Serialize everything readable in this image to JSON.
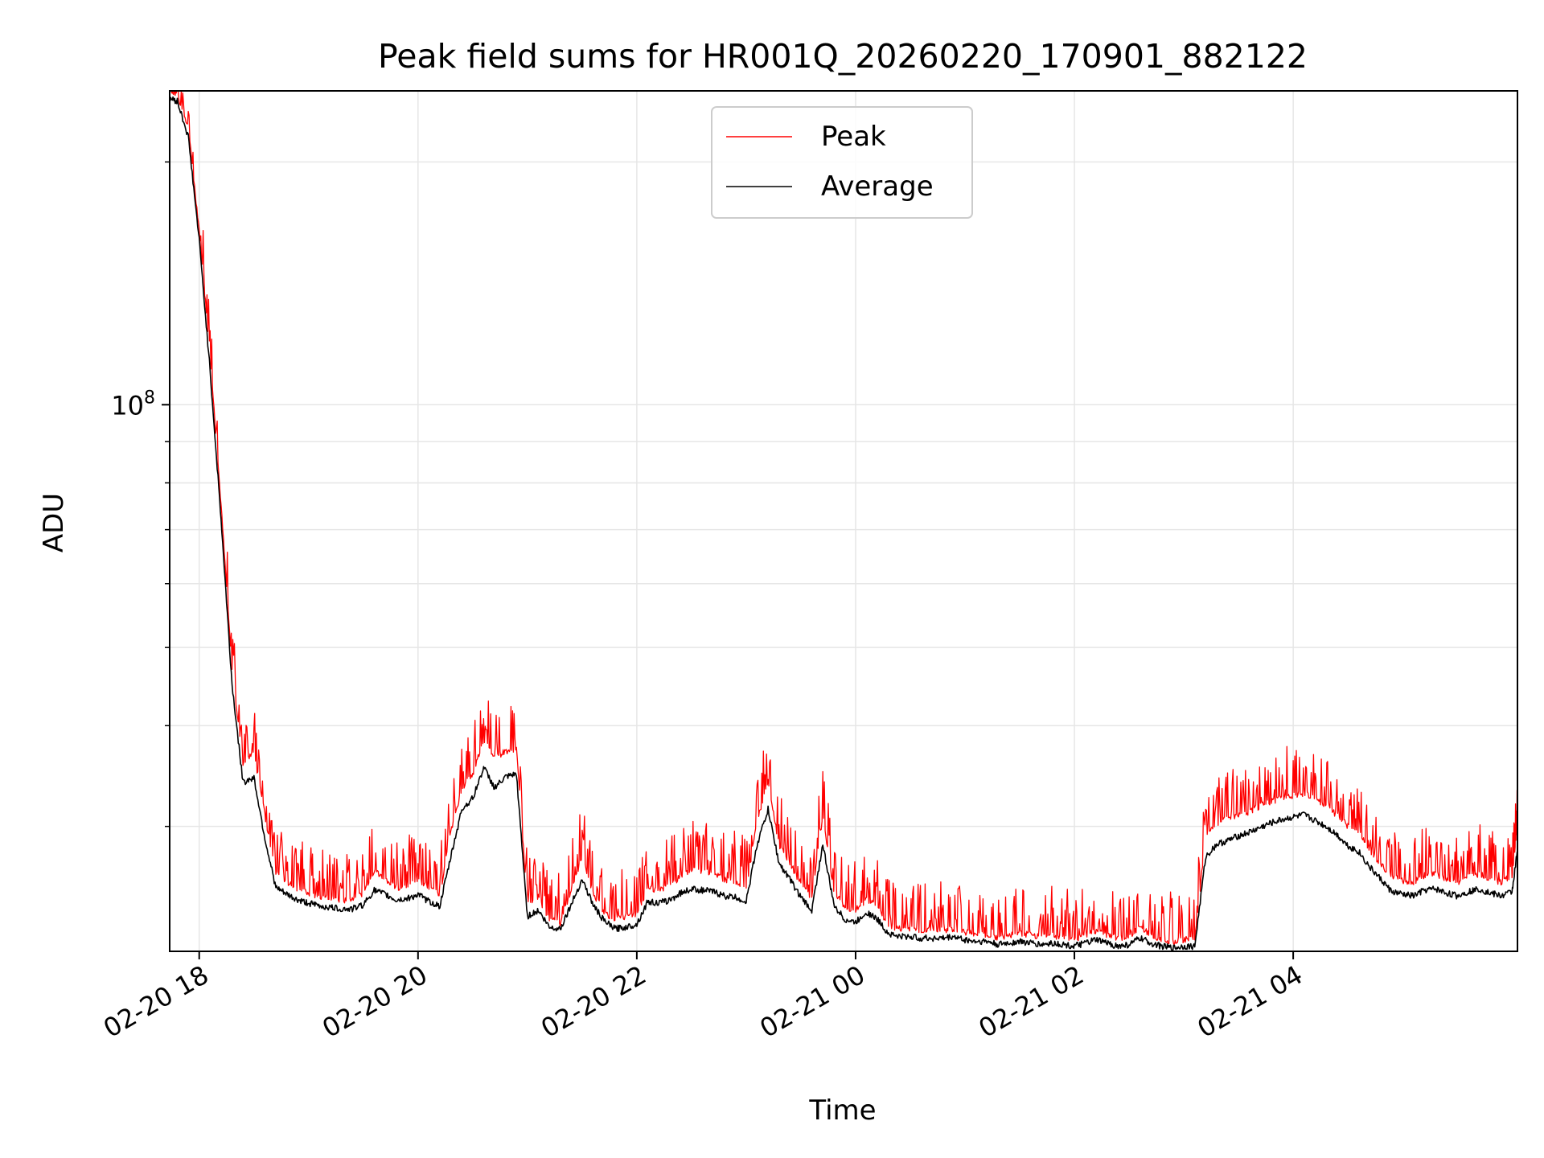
{
  "chart_data": {
    "type": "line",
    "title": "Peak field sums for HR001Q_20260220_170901_882122",
    "xlabel": "Time",
    "ylabel": "ADU",
    "yscale": "log",
    "grid": true,
    "legend_position": "upper-center",
    "xlim_hours": [
      -1.27,
      11.05
    ],
    "ylim": [
      21000000,
      245000000
    ],
    "x_unit": "hours since 2026-02-20 19:00",
    "x_ticks": [
      {
        "value": -1,
        "label": "02-20 18"
      },
      {
        "value": 1,
        "label": "02-20 20"
      },
      {
        "value": 3,
        "label": "02-20 22"
      },
      {
        "value": 5,
        "label": "02-21 00"
      },
      {
        "value": 7,
        "label": "02-21 02"
      },
      {
        "value": 9,
        "label": "02-21 04"
      }
    ],
    "y_major_ticks": [
      {
        "value": 100000000,
        "base": "10",
        "exp": "8"
      }
    ],
    "y_minor_ticks": [
      30000000,
      40000000,
      50000000,
      60000000,
      70000000,
      80000000,
      90000000,
      200000000
    ],
    "series": [
      {
        "name": "Peak",
        "color": "#ff0000",
        "spiky": true,
        "x": [
          -1.27,
          -1.2,
          -1.1,
          -1.0,
          -0.9,
          -0.8,
          -0.7,
          -0.6,
          -0.5,
          -0.4,
          -0.3,
          -0.2,
          -0.1,
          0.0,
          0.1,
          0.2,
          0.3,
          0.4,
          0.5,
          0.6,
          0.7,
          0.8,
          0.9,
          1.0,
          1.1,
          1.2,
          1.3,
          1.4,
          1.5,
          1.6,
          1.7,
          1.8,
          1.9,
          2.0,
          2.1,
          2.2,
          2.3,
          2.4,
          2.5,
          2.6,
          2.7,
          2.8,
          2.9,
          3.0,
          3.1,
          3.2,
          3.3,
          3.4,
          3.5,
          3.6,
          3.7,
          3.8,
          3.9,
          4.0,
          4.1,
          4.2,
          4.3,
          4.4,
          4.5,
          4.6,
          4.7,
          4.8,
          4.9,
          5.0,
          5.1,
          5.2,
          5.3,
          5.4,
          5.5,
          5.6,
          5.7,
          5.8,
          5.9,
          6.0,
          6.1,
          6.2,
          6.3,
          6.4,
          6.5,
          6.6,
          6.7,
          6.8,
          6.9,
          7.0,
          7.1,
          7.2,
          7.3,
          7.4,
          7.5,
          7.6,
          7.7,
          7.8,
          7.9,
          8.0,
          8.1,
          8.2,
          8.3,
          8.4,
          8.5,
          8.6,
          8.7,
          8.8,
          8.9,
          9.0,
          9.1,
          9.2,
          9.3,
          9.4,
          9.5,
          9.6,
          9.7,
          9.8,
          9.9,
          10.0,
          10.1,
          10.2,
          10.3,
          10.4,
          10.5,
          10.6,
          10.7,
          10.8,
          10.9,
          11.0,
          11.05
        ],
        "values": [
          245000000,
          243000000,
          220000000,
          165000000,
          115000000,
          75000000,
          47000000,
          36000000,
          37000000,
          31000000,
          26200000,
          25600000,
          25100000,
          24800000,
          24600000,
          24400000,
          24300000,
          24300000,
          24800000,
          26500000,
          25800000,
          25200000,
          25300000,
          25900000,
          25100000,
          24700000,
          29500000,
          33500000,
          34800000,
          38500000,
          36500000,
          37200000,
          37500000,
          24000000,
          24500000,
          23000000,
          22800000,
          25000000,
          27500000,
          24800000,
          23500000,
          23000000,
          23200000,
          23400000,
          25200000,
          25000000,
          25300000,
          26000000,
          26500000,
          26400000,
          26300000,
          25800000,
          25700000,
          25200000,
          30500000,
          34000000,
          28500000,
          27000000,
          25500000,
          24500000,
          31000000,
          25000000,
          23800000,
          23600000,
          24400000,
          23800000,
          22600000,
          22400000,
          22400000,
          22300000,
          22300000,
          22300000,
          22400000,
          22200000,
          22100000,
          22000000,
          21800000,
          22000000,
          22100000,
          22000000,
          21900000,
          22000000,
          21800000,
          21700000,
          22000000,
          22300000,
          22000000,
          21800000,
          21900000,
          22500000,
          22000000,
          21700000,
          21600000,
          21700000,
          21800000,
          29000000,
          30200000,
          30700000,
          31000000,
          31300000,
          31800000,
          32200000,
          32600000,
          32800000,
          33000000,
          32400000,
          31800000,
          31000000,
          30000000,
          29500000,
          28000000,
          27000000,
          26000000,
          25700000,
          25600000,
          26100000,
          26200000,
          25800000,
          25600000,
          26000000,
          26200000,
          25800000,
          25600000,
          26000000,
          30000000
        ]
      },
      {
        "name": "Average",
        "color": "#000000",
        "spiky": false,
        "x": [
          -1.27,
          -1.2,
          -1.1,
          -1.0,
          -0.9,
          -0.8,
          -0.7,
          -0.6,
          -0.5,
          -0.4,
          -0.3,
          -0.2,
          -0.1,
          0.0,
          0.1,
          0.2,
          0.3,
          0.4,
          0.5,
          0.6,
          0.7,
          0.8,
          0.9,
          1.0,
          1.1,
          1.2,
          1.3,
          1.4,
          1.5,
          1.6,
          1.7,
          1.8,
          1.9,
          2.0,
          2.1,
          2.2,
          2.3,
          2.4,
          2.5,
          2.6,
          2.7,
          2.8,
          2.9,
          3.0,
          3.1,
          3.2,
          3.3,
          3.4,
          3.5,
          3.6,
          3.7,
          3.8,
          3.9,
          4.0,
          4.1,
          4.2,
          4.3,
          4.4,
          4.5,
          4.6,
          4.7,
          4.8,
          4.9,
          5.0,
          5.1,
          5.2,
          5.3,
          5.4,
          5.5,
          5.6,
          5.7,
          5.8,
          5.9,
          6.0,
          6.1,
          6.2,
          6.3,
          6.4,
          6.5,
          6.6,
          6.7,
          6.8,
          6.9,
          7.0,
          7.1,
          7.2,
          7.3,
          7.4,
          7.5,
          7.6,
          7.7,
          7.8,
          7.9,
          8.0,
          8.1,
          8.2,
          8.3,
          8.4,
          8.5,
          8.6,
          8.7,
          8.8,
          8.9,
          9.0,
          9.1,
          9.2,
          9.3,
          9.4,
          9.5,
          9.6,
          9.7,
          9.8,
          9.9,
          10.0,
          10.1,
          10.2,
          10.3,
          10.4,
          10.5,
          10.6,
          10.7,
          10.8,
          10.9,
          11.0,
          11.05
        ],
        "values": [
          240000000,
          238000000,
          215000000,
          160000000,
          110000000,
          72000000,
          45000000,
          34000000,
          34500000,
          29000000,
          25200000,
          24700000,
          24300000,
          24100000,
          23900000,
          23800000,
          23700000,
          23700000,
          24000000,
          25000000,
          24700000,
          24300000,
          24400000,
          24700000,
          24200000,
          23900000,
          27500000,
          31500000,
          32500000,
          35500000,
          33500000,
          34500000,
          34800000,
          23200000,
          23600000,
          22500000,
          22400000,
          24000000,
          25800000,
          24000000,
          22900000,
          22400000,
          22500000,
          22700000,
          24200000,
          24100000,
          24300000,
          24800000,
          25100000,
          25000000,
          24900000,
          24600000,
          24500000,
          24200000,
          28500000,
          31500000,
          27000000,
          25800000,
          24500000,
          23600000,
          28500000,
          24000000,
          23000000,
          22800000,
          23500000,
          23000000,
          22100000,
          21900000,
          21900000,
          21800000,
          21800000,
          21800000,
          21900000,
          21700000,
          21600000,
          21600000,
          21400000,
          21500000,
          21600000,
          21500000,
          21400000,
          21500000,
          21400000,
          21300000,
          21500000,
          21700000,
          21500000,
          21300000,
          21400000,
          21800000,
          21500000,
          21300000,
          21200000,
          21300000,
          21300000,
          27500000,
          28500000,
          28800000,
          29200000,
          29500000,
          29900000,
          30300000,
          30600000,
          30800000,
          31000000,
          30500000,
          30000000,
          29300000,
          28400000,
          27900000,
          26700000,
          25800000,
          24900000,
          24700000,
          24600000,
          25000000,
          25100000,
          24800000,
          24600000,
          24900000,
          25100000,
          24800000,
          24600000,
          24900000,
          28000000
        ]
      }
    ]
  }
}
